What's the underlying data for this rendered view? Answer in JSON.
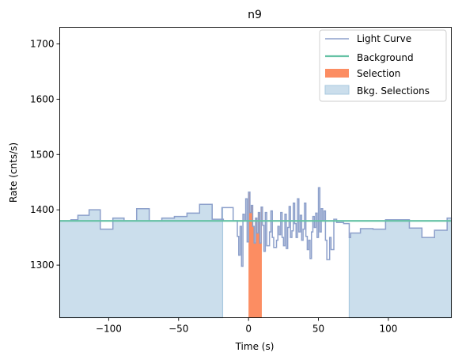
{
  "chart_data": {
    "type": "line",
    "title": "n9",
    "xlabel": "Time (s)",
    "ylabel": "Rate (cnts/s)",
    "xlim": [
      -135,
      145
    ],
    "ylim": [
      1205,
      1730
    ],
    "xticks": [
      -100,
      -50,
      0,
      50,
      100
    ],
    "xtick_labels": [
      "−100",
      "−50",
      "0",
      "50",
      "100"
    ],
    "yticks": [
      1300,
      1400,
      1500,
      1600,
      1700
    ],
    "ytick_labels": [
      "1300",
      "1400",
      "1500",
      "1600",
      "1700"
    ],
    "grid": false,
    "legend_position": "top-right",
    "colors": {
      "light_curve": "#8da0cb",
      "background": "#66c2a5",
      "selection": "#fc8d62",
      "bkg_selection_fill": "#cbdeec",
      "bkg_selection_edge": "#a9c9df"
    },
    "series": [
      {
        "name": "Light Curve",
        "style": "step-post",
        "points": [
          [
            -135,
            1380
          ],
          [
            -127,
            1382
          ],
          [
            -122,
            1390
          ],
          [
            -114,
            1400
          ],
          [
            -106,
            1365
          ],
          [
            -97,
            1385
          ],
          [
            -89,
            1380
          ],
          [
            -80,
            1402
          ],
          [
            -71,
            1380
          ],
          [
            -62,
            1385
          ],
          [
            -53,
            1388
          ],
          [
            -44,
            1394
          ],
          [
            -35,
            1410
          ],
          [
            -26,
            1383
          ],
          [
            -18,
            1380
          ],
          [
            -19,
            1404
          ],
          [
            -11,
            1380
          ],
          [
            -9,
            1380
          ],
          [
            -8,
            1352
          ],
          [
            -7,
            1318
          ],
          [
            -6,
            1370
          ],
          [
            -5,
            1298
          ],
          [
            -4,
            1392
          ],
          [
            -3,
            1380
          ],
          [
            -2,
            1420
          ],
          [
            -1,
            1342
          ],
          [
            0,
            1432
          ],
          [
            1,
            1395
          ],
          [
            2,
            1408
          ],
          [
            3,
            1370
          ],
          [
            4,
            1340
          ],
          [
            5,
            1385
          ],
          [
            6,
            1358
          ],
          [
            7,
            1395
          ],
          [
            8,
            1340
          ],
          [
            9,
            1405
          ],
          [
            10,
            1372
          ],
          [
            11,
            1325
          ],
          [
            12,
            1395
          ],
          [
            13,
            1335
          ],
          [
            15,
            1360
          ],
          [
            16,
            1398
          ],
          [
            17,
            1350
          ],
          [
            18,
            1332
          ],
          [
            20,
            1345
          ],
          [
            21,
            1370
          ],
          [
            22,
            1355
          ],
          [
            23,
            1395
          ],
          [
            24,
            1350
          ],
          [
            25,
            1335
          ],
          [
            26,
            1392
          ],
          [
            27,
            1330
          ],
          [
            28,
            1368
          ],
          [
            29,
            1406
          ],
          [
            30,
            1350
          ],
          [
            31,
            1362
          ],
          [
            32,
            1412
          ],
          [
            33,
            1375
          ],
          [
            34,
            1350
          ],
          [
            35,
            1420
          ],
          [
            36,
            1360
          ],
          [
            37,
            1390
          ],
          [
            38,
            1345
          ],
          [
            39,
            1365
          ],
          [
            40,
            1412
          ],
          [
            41,
            1352
          ],
          [
            42,
            1328
          ],
          [
            43,
            1345
          ],
          [
            44,
            1312
          ],
          [
            45,
            1360
          ],
          [
            46,
            1388
          ],
          [
            47,
            1368
          ],
          [
            48,
            1394
          ],
          [
            49,
            1350
          ],
          [
            50,
            1440
          ],
          [
            51,
            1360
          ],
          [
            52,
            1402
          ],
          [
            53,
            1380
          ],
          [
            54,
            1398
          ],
          [
            55,
            1345
          ],
          [
            56,
            1310
          ],
          [
            58,
            1350
          ],
          [
            59,
            1328
          ],
          [
            61,
            1383
          ],
          [
            63,
            1377
          ],
          [
            68,
            1375
          ],
          [
            72,
            1350
          ],
          [
            73,
            1358
          ],
          [
            80,
            1366
          ],
          [
            89,
            1365
          ],
          [
            98,
            1382
          ],
          [
            115,
            1367
          ],
          [
            124,
            1350
          ],
          [
            133,
            1363
          ],
          [
            142,
            1385
          ],
          [
            145,
            1385
          ]
        ]
      },
      {
        "name": "Background",
        "style": "constant",
        "value": 1380
      },
      {
        "name": "Selection",
        "style": "span",
        "range": [
          0,
          9.5
        ]
      },
      {
        "name": "Bkg. Selections",
        "style": "span",
        "ranges": [
          [
            -135,
            -18.5
          ],
          [
            72,
            145
          ]
        ]
      }
    ]
  }
}
